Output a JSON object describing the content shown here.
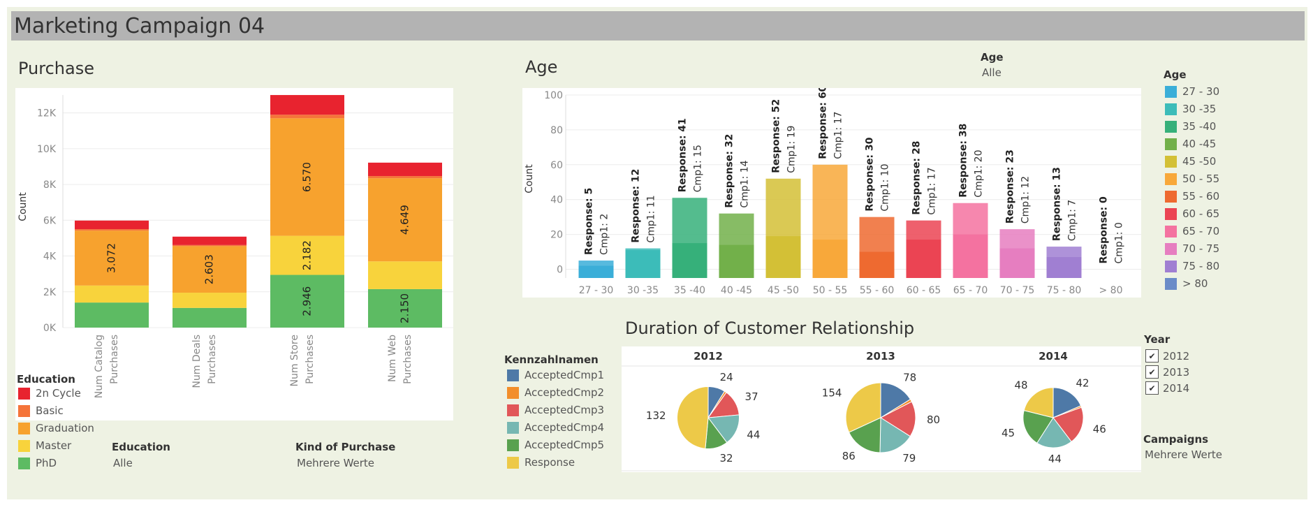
{
  "title": "Marketing Campaign 04",
  "purchase": {
    "title": "Purchase",
    "education_legend_title": "Education",
    "filters": [
      {
        "label": "Education",
        "value": "Alle"
      },
      {
        "label": "Kind of Purchase",
        "value": "Mehrere Werte"
      }
    ]
  },
  "age": {
    "title": "Age",
    "filter_label": "Age",
    "filter_value": "Alle",
    "legend_title": "Age"
  },
  "duration": {
    "title": "Duration of Customer Relationship",
    "legend_title": "Kennzahlnamen",
    "year_filter_title": "Year",
    "years_checked": [
      "2012",
      "2013",
      "2014"
    ],
    "campaigns_label": "Campaigns",
    "campaigns_value": "Mehrere Werte"
  },
  "colors": {
    "education": {
      "2n Cycle": "#e8232f",
      "Basic": "#f5743a",
      "Graduation": "#f7a22e",
      "Master": "#f8d33c",
      "PhD": "#5dbb63"
    },
    "age": {
      "27 - 30": "#3aaed8",
      "30 -35": "#3cbcb9",
      "35 -40": "#36b07a",
      "40 -45": "#72b04a",
      "45 -50": "#d3c036",
      "50 - 55": "#f8a83a",
      "55 - 60": "#ee6a30",
      "60 - 65": "#eb4453",
      "65 - 70": "#f472a0",
      "70 - 75": "#e67ec0",
      "75 - 80": "#a07fd2",
      "> 80": "#6b8cc8"
    },
    "kennzahl": {
      "AcceptedCmp1": "#4e79a7",
      "AcceptedCmp2": "#f28e2b",
      "AcceptedCmp3": "#e15759",
      "AcceptedCmp4": "#76b7b2",
      "AcceptedCmp5": "#59a14f",
      "Response": "#edc948"
    }
  },
  "chart_data": [
    {
      "type": "bar",
      "stacked": true,
      "title": "Purchase",
      "xlabel": "",
      "ylabel": "Count",
      "ylim": [
        0,
        13000
      ],
      "yticks": [
        0,
        2000,
        4000,
        6000,
        8000,
        10000,
        12000
      ],
      "ytick_labels": [
        "0K",
        "2K",
        "4K",
        "6K",
        "8K",
        "10K",
        "12K"
      ],
      "categories": [
        "Num Catalog Purchases",
        "Num Deals Purchases",
        "Num Store Purchases",
        "Num Web Purchases"
      ],
      "category_lines": [
        [
          "Num Catalog",
          "Purchases"
        ],
        [
          "Num Deals",
          "Purchases"
        ],
        [
          "Num Store",
          "Purchases"
        ],
        [
          "Num Web",
          "Purchases"
        ]
      ],
      "series": [
        {
          "name": "PhD",
          "values": [
            1400,
            1100,
            2946,
            2150
          ],
          "labels": [
            "",
            "",
            "2.946",
            "2.150"
          ]
        },
        {
          "name": "Master",
          "values": [
            950,
            850,
            2182,
            1550
          ],
          "labels": [
            "",
            "",
            "2.182",
            ""
          ]
        },
        {
          "name": "Graduation",
          "values": [
            3072,
            2603,
            6570,
            4649
          ],
          "labels": [
            "3.072",
            "2.603",
            "6.570",
            "4.649"
          ]
        },
        {
          "name": "Basic",
          "values": [
            80,
            60,
            200,
            120
          ],
          "labels": [
            "",
            "",
            "",
            ""
          ]
        },
        {
          "name": "2n Cycle",
          "values": [
            480,
            470,
            1100,
            750
          ],
          "labels": [
            "",
            "",
            "",
            ""
          ]
        }
      ],
      "legend": [
        "2n Cycle",
        "Basic",
        "Graduation",
        "Master",
        "PhD"
      ],
      "grid": true
    },
    {
      "type": "bar",
      "title": "Age",
      "xlabel": "",
      "ylabel": "Count",
      "ylim": [
        -5,
        100
      ],
      "yticks": [
        0,
        20,
        40,
        60,
        80,
        100
      ],
      "categories": [
        "27 - 30",
        "30 -35",
        "35 -40",
        "40 -45",
        "45 -50",
        "50 - 55",
        "55 - 60",
        "60 - 65",
        "65 - 70",
        "70 - 75",
        "75 - 80",
        "> 80"
      ],
      "series": [
        {
          "name": "Response",
          "values": [
            5,
            12,
            41,
            32,
            52,
            60,
            30,
            28,
            38,
            23,
            13,
            0
          ]
        },
        {
          "name": "Cmp1",
          "values": [
            2,
            11,
            15,
            14,
            19,
            17,
            10,
            17,
            20,
            12,
            7,
            0
          ]
        }
      ],
      "legend": [
        "27 - 30",
        "30 -35",
        "35 -40",
        "40 -45",
        "45 -50",
        "50 - 55",
        "55 - 60",
        "60 - 65",
        "65 - 70",
        "70 - 75",
        "75 - 80",
        "> 80"
      ],
      "grid": true
    },
    {
      "type": "pie",
      "title": "Duration of Customer Relationship",
      "labels": [
        "AcceptedCmp1",
        "AcceptedCmp2",
        "AcceptedCmp3",
        "AcceptedCmp4",
        "AcceptedCmp5",
        "Response"
      ],
      "pies": [
        {
          "year": "2012",
          "values": [
            24,
            3,
            37,
            44,
            32,
            132
          ],
          "shown_labels": [
            "24",
            "",
            "37",
            "44",
            "32",
            "132"
          ]
        },
        {
          "year": "2013",
          "values": [
            78,
            6,
            80,
            79,
            86,
            154
          ],
          "shown_labels": [
            "78",
            "",
            "80",
            "79",
            "86",
            "154"
          ]
        },
        {
          "year": "2014",
          "values": [
            42,
            2,
            46,
            44,
            45,
            48
          ],
          "shown_labels": [
            "42",
            "",
            "46",
            "44",
            "45",
            "48"
          ]
        }
      ]
    }
  ]
}
